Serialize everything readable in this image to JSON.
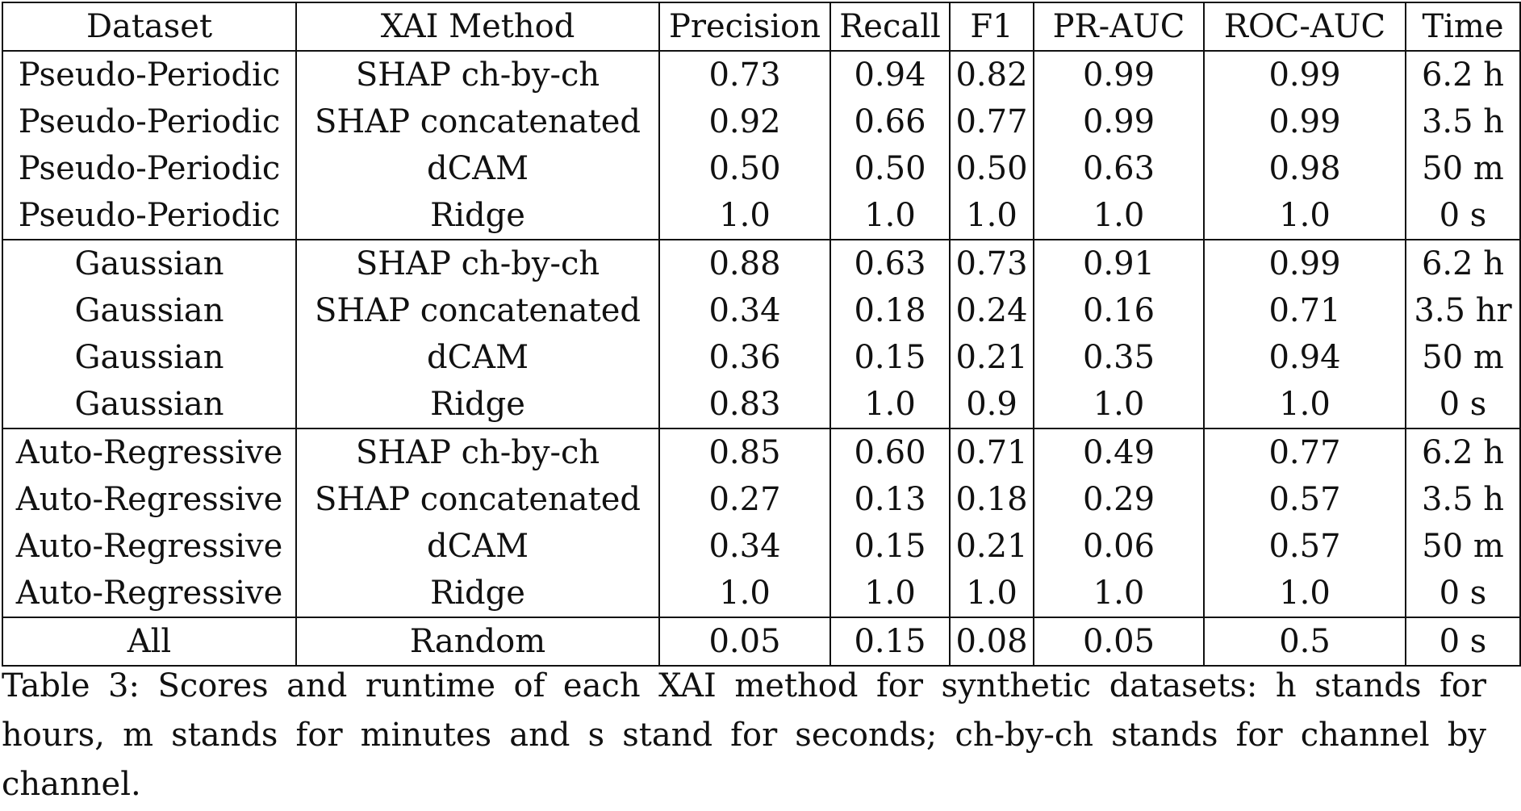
{
  "table": {
    "columns": [
      "Dataset",
      "XAI Method",
      "Precision",
      "Recall",
      "F1",
      "PR-AUC",
      "ROC-AUC",
      "Time"
    ],
    "groups": [
      {
        "rows": [
          [
            "Pseudo-Periodic",
            "SHAP ch-by-ch",
            "0.73",
            "0.94",
            "0.82",
            "0.99",
            "0.99",
            "6.2 h"
          ],
          [
            "Pseudo-Periodic",
            "SHAP concatenated",
            "0.92",
            "0.66",
            "0.77",
            "0.99",
            "0.99",
            "3.5 h"
          ],
          [
            "Pseudo-Periodic",
            "dCAM",
            "0.50",
            "0.50",
            "0.50",
            "0.63",
            "0.98",
            "50 m"
          ],
          [
            "Pseudo-Periodic",
            "Ridge",
            "1.0",
            "1.0",
            "1.0",
            "1.0",
            "1.0",
            "0 s"
          ]
        ]
      },
      {
        "rows": [
          [
            "Gaussian",
            "SHAP ch-by-ch",
            "0.88",
            "0.63",
            "0.73",
            "0.91",
            "0.99",
            "6.2 h"
          ],
          [
            "Gaussian",
            "SHAP concatenated",
            "0.34",
            "0.18",
            "0.24",
            "0.16",
            "0.71",
            "3.5 hr"
          ],
          [
            "Gaussian",
            "dCAM",
            "0.36",
            "0.15",
            "0.21",
            "0.35",
            "0.94",
            "50 m"
          ],
          [
            "Gaussian",
            "Ridge",
            "0.83",
            "1.0",
            "0.9",
            "1.0",
            "1.0",
            "0 s"
          ]
        ]
      },
      {
        "rows": [
          [
            "Auto-Regressive",
            "SHAP ch-by-ch",
            "0.85",
            "0.60",
            "0.71",
            "0.49",
            "0.77",
            "6.2 h"
          ],
          [
            "Auto-Regressive",
            "SHAP concatenated",
            "0.27",
            "0.13",
            "0.18",
            "0.29",
            "0.57",
            "3.5 h"
          ],
          [
            "Auto-Regressive",
            "dCAM",
            "0.34",
            "0.15",
            "0.21",
            "0.06",
            "0.57",
            "50 m"
          ],
          [
            "Auto-Regressive",
            "Ridge",
            "1.0",
            "1.0",
            "1.0",
            "1.0",
            "1.0",
            "0 s"
          ]
        ]
      },
      {
        "rows": [
          [
            "All",
            "Random",
            "0.05",
            "0.15",
            "0.08",
            "0.05",
            "0.5",
            "0 s"
          ]
        ]
      }
    ]
  },
  "caption": "Table 3: Scores and runtime of each XAI method for synthetic datasets: h stands for hours, m stands for minutes and s stand for seconds; ch-by-ch stands for channel by channel."
}
